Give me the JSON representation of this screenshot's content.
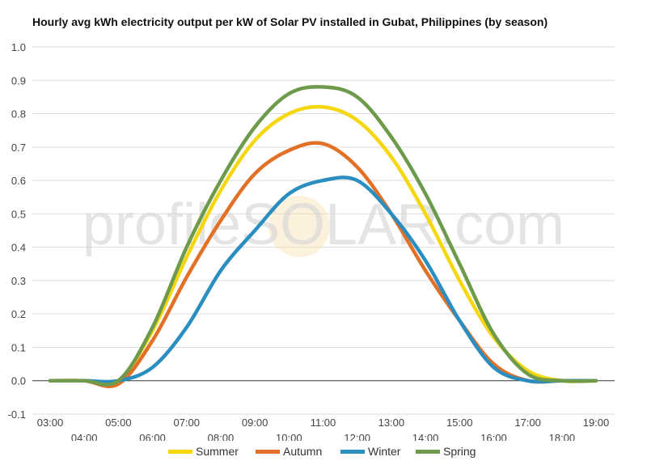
{
  "watermark": "profileSOLAR.com",
  "chart_data": {
    "type": "line",
    "title": "Hourly avg kWh electricity output per kW of Solar PV installed in Gubat, Philippines (by season)",
    "xlabel": "",
    "ylabel": "",
    "x": [
      "03:00",
      "04:00",
      "05:00",
      "06:00",
      "07:00",
      "08:00",
      "09:00",
      "10:00",
      "11:00",
      "12:00",
      "13:00",
      "14:00",
      "15:00",
      "16:00",
      "17:00",
      "18:00",
      "19:00"
    ],
    "ylim": [
      -0.1,
      1.0
    ],
    "yticks": [
      "-0.1",
      "0.0",
      "0.1",
      "0.2",
      "0.3",
      "0.4",
      "0.5",
      "0.6",
      "0.7",
      "0.8",
      "0.9",
      "1.0"
    ],
    "grid": true,
    "legend_position": "bottom",
    "series": [
      {
        "name": "Summer",
        "color": "#f5d60f",
        "values": [
          0,
          0,
          0,
          0.15,
          0.37,
          0.57,
          0.72,
          0.8,
          0.82,
          0.78,
          0.67,
          0.5,
          0.3,
          0.13,
          0.03,
          0,
          0
        ]
      },
      {
        "name": "Autumn",
        "color": "#e27027",
        "values": [
          0,
          0,
          -0.01,
          0.12,
          0.31,
          0.48,
          0.62,
          0.69,
          0.71,
          0.64,
          0.5,
          0.33,
          0.18,
          0.05,
          0,
          0,
          0
        ]
      },
      {
        "name": "Winter",
        "color": "#2b8ec0",
        "values": [
          0,
          0,
          0,
          0.04,
          0.16,
          0.33,
          0.45,
          0.56,
          0.6,
          0.6,
          0.5,
          0.36,
          0.18,
          0.04,
          0,
          0,
          0
        ]
      },
      {
        "name": "Spring",
        "color": "#6e9a4c",
        "values": [
          0,
          0,
          0,
          0.16,
          0.4,
          0.6,
          0.76,
          0.86,
          0.88,
          0.85,
          0.73,
          0.56,
          0.35,
          0.14,
          0.02,
          0,
          0
        ]
      }
    ]
  }
}
